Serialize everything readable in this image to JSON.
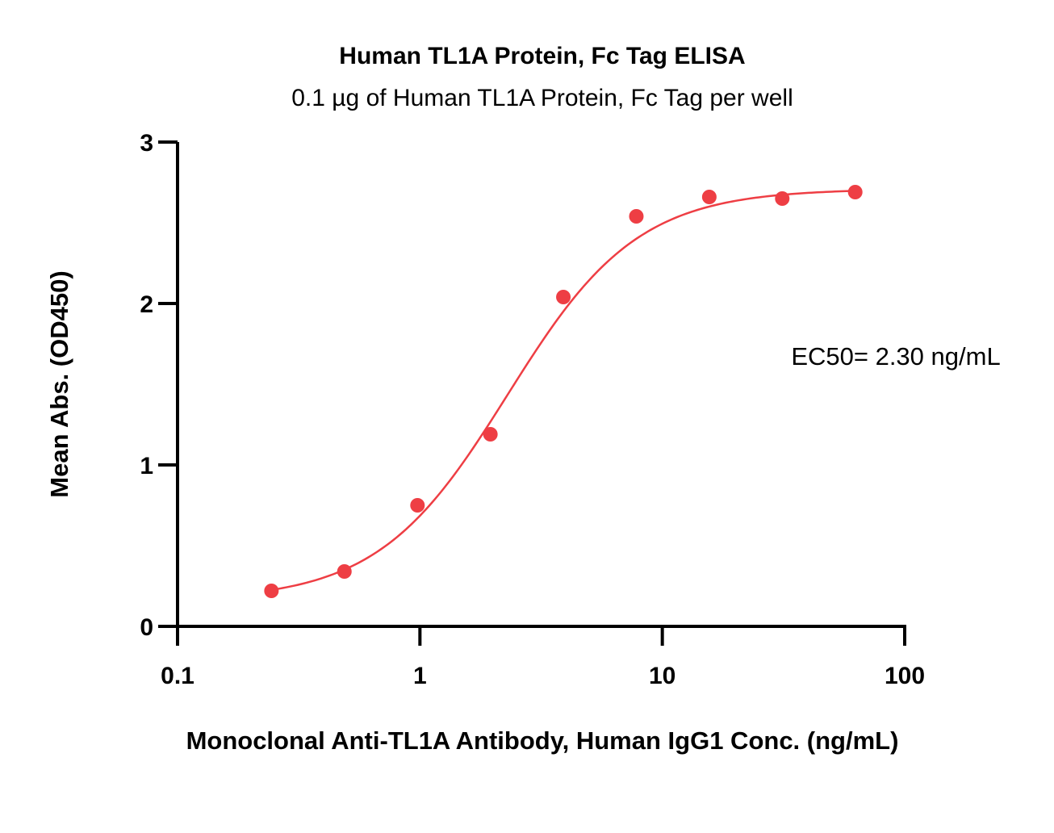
{
  "chart_data": {
    "type": "scatter",
    "title": "Human TL1A Protein, Fc Tag ELISA",
    "subtitle": "0.1 µg of Human TL1A Protein, Fc Tag per well",
    "xlabel": "Monoclonal Anti-TL1A Antibody, Human IgG1 Conc. (ng/mL)",
    "ylabel": "Mean Abs. (OD450)",
    "xscale": "log",
    "xlim": [
      0.1,
      100
    ],
    "ylim": [
      0,
      3
    ],
    "xticks": [
      {
        "value": 0.1,
        "label": "0.1"
      },
      {
        "value": 1,
        "label": "1"
      },
      {
        "value": 10,
        "label": "10"
      },
      {
        "value": 100,
        "label": "100"
      }
    ],
    "yticks": [
      {
        "value": 0,
        "label": "0"
      },
      {
        "value": 1,
        "label": "1"
      },
      {
        "value": 2,
        "label": "2"
      },
      {
        "value": 3,
        "label": "3"
      }
    ],
    "grid": false,
    "color": "#ee3e44",
    "series": [
      {
        "x": [
          0.244,
          0.488,
          0.977,
          1.953,
          3.906,
          7.813,
          15.625,
          31.25,
          62.5
        ],
        "y": [
          0.22,
          0.34,
          0.75,
          1.19,
          2.04,
          2.54,
          2.66,
          2.65,
          2.69
        ],
        "fit": "4PL"
      }
    ],
    "annotation": "EC50= 2.30 ng/mL"
  }
}
